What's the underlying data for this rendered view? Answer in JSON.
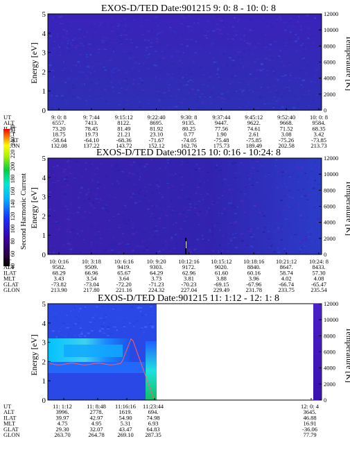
{
  "chart_data": [
    {
      "type": "heatmap",
      "title": "EXOS-D/TED   Date:901215  9: 0: 8 - 10: 0: 8",
      "ylabel": "Energy [eV]",
      "y2label": "Temperature [K]",
      "ylim": [
        0,
        5
      ],
      "y2lim": [
        0,
        12000
      ],
      "yticks": [
        "0",
        "1",
        "2",
        "3",
        "4",
        "5"
      ],
      "y2ticks": [
        "0",
        "2000",
        "4000",
        "6000",
        "8000",
        "10000",
        "12000"
      ],
      "rows": [
        "UT",
        "ALT",
        "ILAT",
        "MLT",
        "GLAT",
        "GLON"
      ],
      "columns": [
        [
          "9: 0: 8",
          "6557.",
          "73.20",
          "18.75",
          "-58.64",
          "132.08"
        ],
        [
          "9: 7:44",
          "7413.",
          "78.45",
          "19.73",
          "-64.10",
          "137.22"
        ],
        [
          "9:15:12",
          "8122.",
          "81.49",
          "21.21",
          "-68.36",
          "143.72"
        ],
        [
          "9:22:40",
          "8695.",
          "81.92",
          "23.10",
          "-71.67",
          "152.12"
        ],
        [
          "9:30: 8",
          "9135.",
          "80.25",
          "0.77",
          "-74.05",
          "162.76"
        ],
        [
          "9:37:44",
          "9447.",
          "77.56",
          "1.90",
          "-75.48",
          "175.73"
        ],
        [
          "9:45:12",
          "9622.",
          "74.61",
          "2.61",
          "-75.85",
          "189.49"
        ],
        [
          "9:52:40",
          "9668.",
          "71.52",
          "3.08",
          "-75.26",
          "202.58"
        ],
        [
          "10: 0: 8",
          "9584.",
          "68.35",
          "3.42",
          "-73.85",
          "213.73"
        ]
      ]
    },
    {
      "type": "heatmap",
      "title": "EXOS-D/TED   Date:901215  10: 0:16 - 10:24: 8",
      "ylabel": "Energy [eV]",
      "y2label": "Temperature [K]",
      "ylim": [
        0,
        5
      ],
      "y2lim": [
        0,
        12000
      ],
      "yticks": [
        "0",
        "1",
        "2",
        "3",
        "4",
        "5"
      ],
      "y2ticks": [
        "0",
        "2000",
        "4000",
        "6000",
        "8000",
        "10000",
        "12000"
      ],
      "rows": [
        "UT",
        "ALT",
        "ILAT",
        "MLT",
        "GLAT",
        "GLON"
      ],
      "columns": [
        [
          "10: 0:16",
          "9582.",
          "68.29",
          "3.43",
          "-73.82",
          "213.90"
        ],
        [
          "10: 3:18",
          "9509.",
          "66.96",
          "3.54",
          "-73.04",
          "217.80"
        ],
        [
          "10: 6:16",
          "9419.",
          "65.67",
          "3.64",
          "-72.20",
          "221.16"
        ],
        [
          "10: 9:20",
          "9303.",
          "64.29",
          "3.73",
          "-71.23",
          "224.32"
        ],
        [
          "10:12:16",
          "9172.",
          "62.96",
          "3.81",
          "-70.23",
          "227.04"
        ],
        [
          "10:15:12",
          "9020.",
          "61.60",
          "3.88",
          "-69.15",
          "229.49"
        ],
        [
          "10:18:16",
          "8840.",
          "60.16",
          "3.96",
          "-67.96",
          "231.78"
        ],
        [
          "10:21:12",
          "8647.",
          "58.74",
          "4.02",
          "-66.74",
          "233.75"
        ],
        [
          "10:24: 8",
          "8433.",
          "57.30",
          "4.08",
          "-65.47",
          "235.54"
        ]
      ]
    },
    {
      "type": "heatmap",
      "title": "EXOS-D/TED   Date:901215  11: 1:12 - 12: 1: 8",
      "ylabel": "Energy [eV]",
      "y2label": "Temperature [K]",
      "ylim": [
        0,
        5
      ],
      "y2lim": [
        0,
        12000
      ],
      "yticks": [
        "0",
        "1",
        "2",
        "3",
        "4",
        "5"
      ],
      "y2ticks": [
        "0",
        "2000",
        "4000",
        "6000",
        "8000",
        "10000",
        "12000"
      ],
      "rows": [
        "UT",
        "ALT",
        "ILAT",
        "MLT",
        "GLAT",
        "GLON"
      ],
      "columns": [
        [
          "11: 1:12",
          "3996.",
          "39.97",
          "4.75",
          "29.30",
          "263.70"
        ],
        [
          "11: 8:48",
          "2778.",
          "42.97",
          "4.95",
          "32.07",
          "264.78"
        ],
        [
          "11:16:16",
          "1619.",
          "54.90",
          "5.31",
          "43.47",
          "269.10"
        ],
        [
          "11:23:44",
          "694.",
          "74.98",
          "6.93",
          "64.83",
          "287.35"
        ],
        [
          "12: 0: 4",
          "3645.",
          "46.88",
          "16.91",
          "-36.06",
          "77.79"
        ]
      ]
    }
  ],
  "colorbar": {
    "label": "Second Harmonic Current",
    "ticks": [
      "40",
      "60",
      "80",
      "100",
      "120",
      "140",
      "160",
      "180",
      "200",
      "220",
      "240",
      "250"
    ]
  }
}
